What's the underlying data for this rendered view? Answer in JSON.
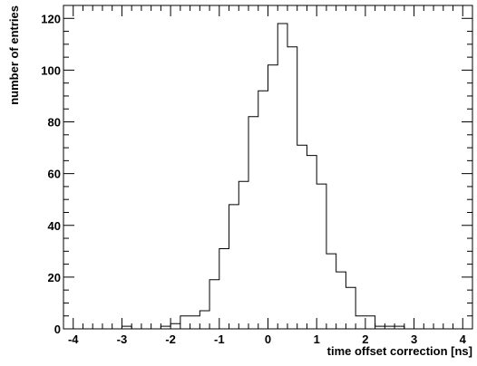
{
  "chart_data": {
    "type": "histogram",
    "title": "",
    "xlabel": "time offset correction [ns]",
    "ylabel": "number of entries",
    "xlim": [
      -4.2,
      4.2
    ],
    "ylim": [
      0,
      125
    ],
    "x_ticks": [
      -4,
      -3,
      -2,
      -1,
      0,
      1,
      2,
      3,
      4
    ],
    "x_tick_labels": [
      "-4",
      "-3",
      "-2",
      "-1",
      "0",
      "1",
      "2",
      "3",
      "4"
    ],
    "y_ticks": [
      0,
      20,
      40,
      60,
      80,
      100,
      120
    ],
    "y_tick_labels": [
      "0",
      "20",
      "40",
      "60",
      "80",
      "100",
      "120"
    ],
    "grid": false,
    "bin_edges": [
      -4.2,
      -4.0,
      -3.8,
      -3.6,
      -3.4,
      -3.2,
      -3.0,
      -2.8,
      -2.6,
      -2.4,
      -2.2,
      -2.0,
      -1.8,
      -1.6,
      -1.4,
      -1.2,
      -1.0,
      -0.8,
      -0.6,
      -0.4,
      -0.2,
      0.0,
      0.2,
      0.4,
      0.6,
      0.8,
      1.0,
      1.2,
      1.4,
      1.6,
      1.8,
      2.0,
      2.2,
      2.4,
      2.6,
      2.8,
      3.0,
      3.2,
      3.4,
      3.6,
      3.8,
      4.0,
      4.2
    ],
    "counts": [
      0,
      0,
      0,
      0,
      0,
      0,
      1,
      0,
      0,
      0,
      1,
      2,
      5,
      5,
      7,
      19,
      31,
      48,
      57,
      82,
      92,
      102,
      118,
      109,
      71,
      67,
      56,
      29,
      22,
      16,
      5,
      5,
      1,
      1,
      1,
      0,
      0,
      0,
      0,
      0,
      0,
      0
    ]
  }
}
